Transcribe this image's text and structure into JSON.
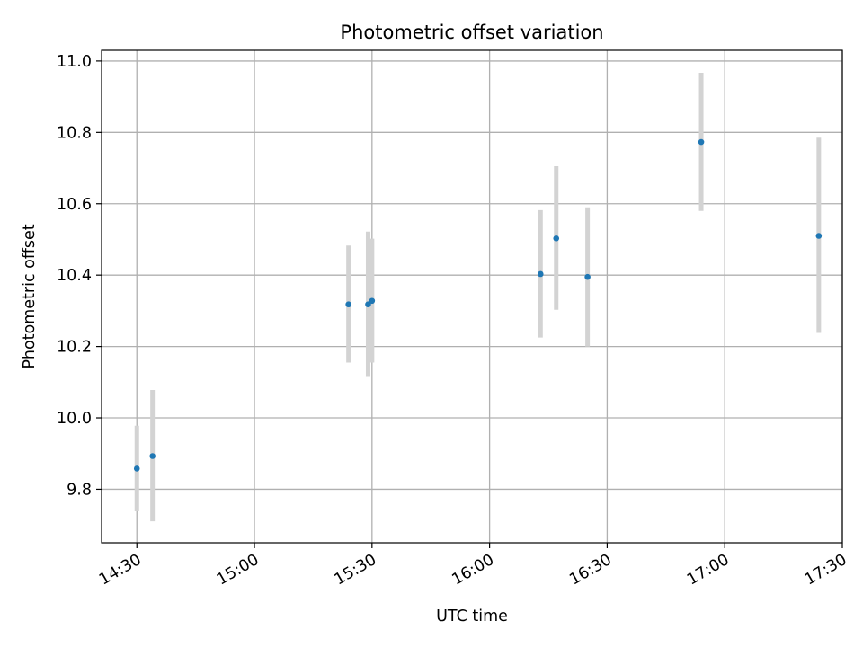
{
  "chart_data": {
    "type": "scatter",
    "title": "Photometric offset variation",
    "xlabel": "UTC time",
    "ylabel": "Photometric offset",
    "xlim": [
      "14:21",
      "17:30"
    ],
    "ylim": [
      9.65,
      11.03
    ],
    "x_ticks": [
      "14:30",
      "15:00",
      "15:30",
      "16:00",
      "16:30",
      "17:00",
      "17:30"
    ],
    "y_ticks": [
      "9.8",
      "10.0",
      "10.2",
      "10.4",
      "10.6",
      "10.8",
      "11.0"
    ],
    "grid": true,
    "colors": {
      "marker": "#1f77b4",
      "errorbar": "#d3d3d3",
      "grid": "#b0b0b0"
    },
    "points": [
      {
        "time": "14:30",
        "value": 9.858,
        "err_low": 9.738,
        "err_high": 9.978
      },
      {
        "time": "14:34",
        "value": 9.893,
        "err_low": 9.71,
        "err_high": 10.078
      },
      {
        "time": "15:24",
        "value": 10.318,
        "err_low": 10.155,
        "err_high": 10.483
      },
      {
        "time": "15:29",
        "value": 10.318,
        "err_low": 10.117,
        "err_high": 10.522
      },
      {
        "time": "15:30",
        "value": 10.328,
        "err_low": 10.155,
        "err_high": 10.502
      },
      {
        "time": "16:13",
        "value": 10.403,
        "err_low": 10.225,
        "err_high": 10.582
      },
      {
        "time": "16:17",
        "value": 10.503,
        "err_low": 10.303,
        "err_high": 10.705
      },
      {
        "time": "16:25",
        "value": 10.395,
        "err_low": 10.2,
        "err_high": 10.59
      },
      {
        "time": "16:54",
        "value": 10.773,
        "err_low": 10.58,
        "err_high": 10.967
      },
      {
        "time": "17:24",
        "value": 10.51,
        "err_low": 10.238,
        "err_high": 10.785
      }
    ]
  }
}
